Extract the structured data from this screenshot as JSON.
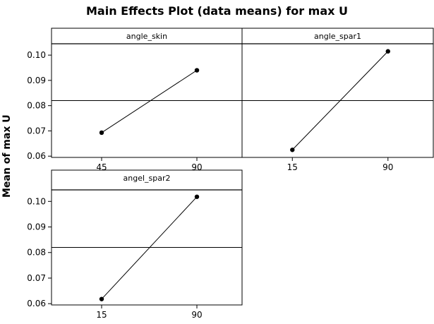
{
  "chart_data": {
    "type": "line",
    "title": "Main Effects Plot (data means) for max U",
    "ylabel": "Mean of max U",
    "ylim": [
      0.0595,
      0.1045
    ],
    "yticks": [
      0.06,
      0.07,
      0.08,
      0.09,
      0.1
    ],
    "ytick_labels": [
      "0.06",
      "0.07",
      "0.08",
      "0.09",
      "0.10"
    ],
    "overall_mean": 0.082,
    "panels": [
      {
        "name": "angle_skin",
        "categories": [
          "45",
          "90"
        ],
        "values": [
          0.0693,
          0.094
        ]
      },
      {
        "name": "angle_spar1",
        "categories": [
          "15",
          "90"
        ],
        "values": [
          0.0625,
          0.1015
        ]
      },
      {
        "name": "angel_spar2",
        "categories": [
          "15",
          "90"
        ],
        "values": [
          0.0618,
          0.1018
        ]
      }
    ]
  }
}
